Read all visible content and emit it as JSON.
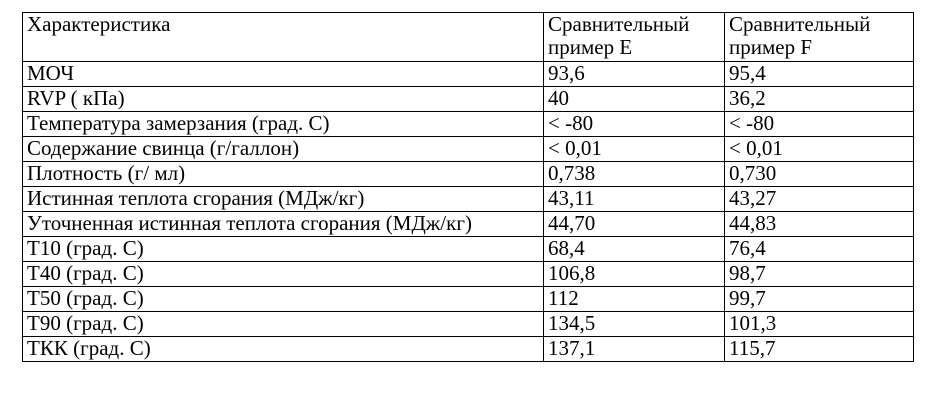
{
  "table": {
    "headers": [
      "Характеристика",
      "Сравнительный пример E",
      "Сравнительный пример F"
    ],
    "rows": [
      [
        "МОЧ",
        "93,6",
        "95,4"
      ],
      [
        "RVP ( кПа)",
        "40",
        "36,2"
      ],
      [
        "Температура замерзания (град. С)",
        "< -80",
        "< -80"
      ],
      [
        "Содержание свинца (г/галлон)",
        "< 0,01",
        "< 0,01"
      ],
      [
        "Плотность (г/ мл)",
        "0,738",
        "0,730"
      ],
      [
        "Истинная теплота сгорания (МДж/кг)",
        "43,11",
        "43,27"
      ],
      [
        "Уточненная истинная теплота сгорания (МДж/кг)",
        "44,70",
        "44,83"
      ],
      [
        "T10 (град. С)",
        "68,4",
        "76,4"
      ],
      [
        "T40 (град. С)",
        "106,8",
        "98,7"
      ],
      [
        "T50 (град. С)",
        "112",
        "99,7"
      ],
      [
        "T90 (град. С)",
        "134,5",
        "101,3"
      ],
      [
        "ТКК (град. С)",
        "137,1",
        "115,7"
      ]
    ]
  }
}
